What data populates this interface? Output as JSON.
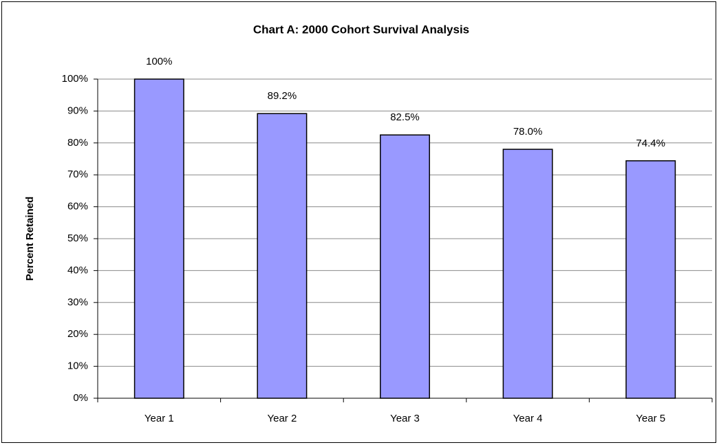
{
  "chart_data": {
    "type": "bar",
    "title": "Chart A:  2000 Cohort Survival Analysis",
    "y_label": "Percent Retained",
    "categories": [
      "Year 1",
      "Year 2",
      "Year 3",
      "Year 4",
      "Year 5"
    ],
    "values": [
      100,
      89.2,
      82.5,
      78.0,
      74.4
    ],
    "value_labels": [
      "100%",
      "89.2%",
      "82.5%",
      "78.0%",
      "74.4%"
    ],
    "color": "#9999ff",
    "ylim": [
      0,
      100
    ],
    "yticks": [
      {
        "value": 0,
        "label": "0%"
      },
      {
        "value": 10,
        "label": "10%"
      },
      {
        "value": 20,
        "label": "20%"
      },
      {
        "value": 30,
        "label": "30%"
      },
      {
        "value": 40,
        "label": "40%"
      },
      {
        "value": 50,
        "label": "50%"
      },
      {
        "value": 60,
        "label": "60%"
      },
      {
        "value": 70,
        "label": "70%"
      },
      {
        "value": 80,
        "label": "80%"
      },
      {
        "value": 90,
        "label": "90%"
      },
      {
        "value": 100,
        "label": "100%"
      }
    ],
    "grid": true
  }
}
